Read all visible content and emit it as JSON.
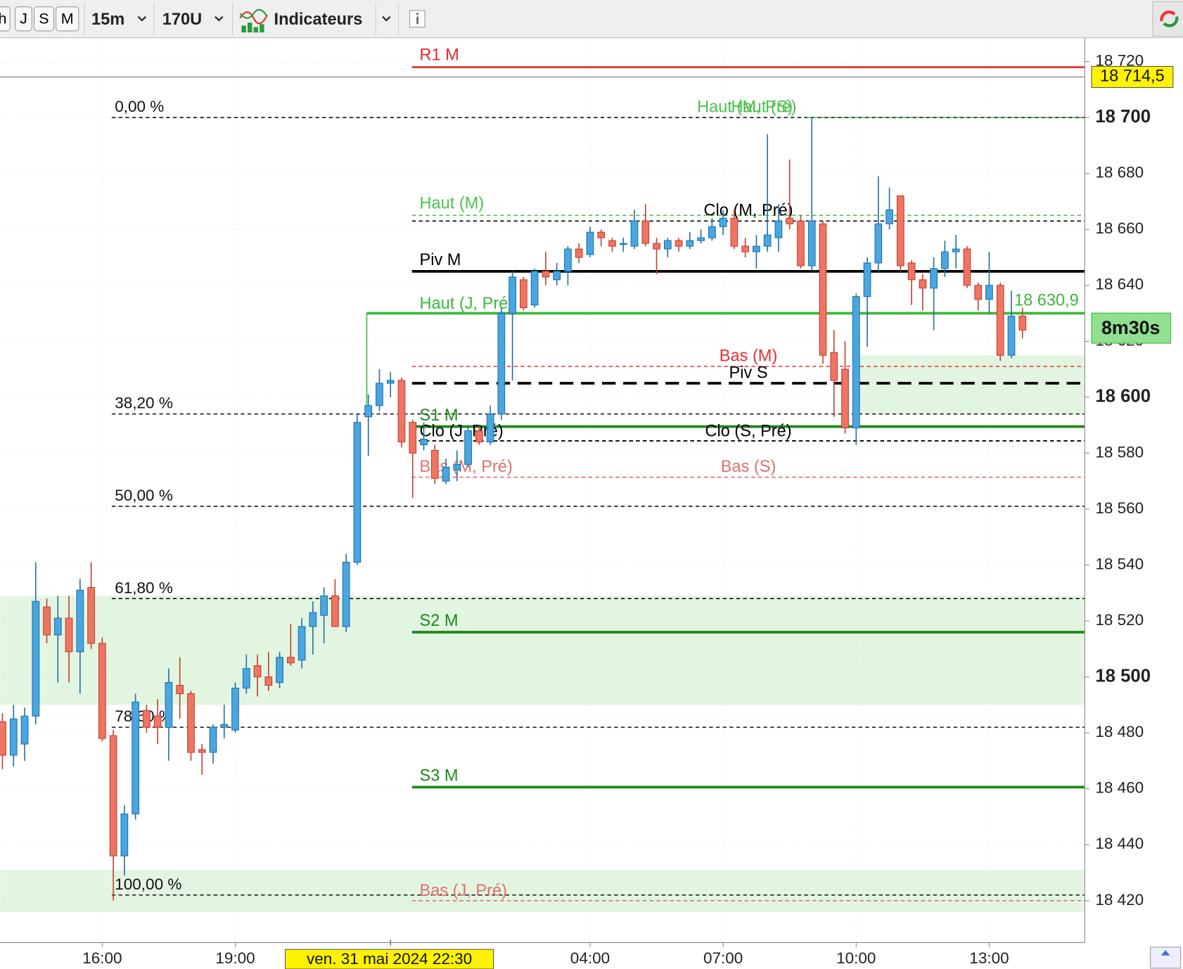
{
  "toolbar": {
    "period_buttons": [
      "h",
      "J",
      "S",
      "M"
    ],
    "timeframe": "15m",
    "units": "170U",
    "indicators": "Indicateurs"
  },
  "chart_data": {
    "type": "candlestick",
    "categories": [
      null,
      null,
      null,
      null,
      null,
      null,
      null,
      null,
      null,
      "16:00",
      null,
      null,
      null,
      null,
      null,
      null,
      null,
      null,
      null,
      null,
      null,
      "19:00",
      null,
      null,
      null,
      null,
      null,
      null,
      null,
      null,
      null,
      null,
      null,
      null,
      null,
      null,
      null,
      null,
      null,
      null,
      null,
      null,
      null,
      null,
      null,
      null,
      null,
      null,
      null,
      null,
      null,
      null,
      null,
      "04:00",
      null,
      null,
      null,
      null,
      null,
      null,
      null,
      null,
      null,
      null,
      null,
      "07:00",
      null,
      null,
      null,
      null,
      null,
      null,
      null,
      null,
      null,
      null,
      null,
      "10:00",
      null,
      null,
      null,
      null,
      null,
      null,
      null,
      null,
      null,
      null,
      null,
      "13:00",
      null,
      null,
      null
    ],
    "open": [
      18484,
      18472,
      18476,
      18486,
      18525,
      18515,
      18521,
      18509,
      18532,
      18512,
      18479,
      18436,
      18451,
      18488,
      18486,
      18482,
      18497,
      18494,
      18474,
      18473,
      18482,
      18481,
      18496,
      18504,
      18500,
      18498,
      18507,
      18506,
      18518,
      18522,
      18529,
      18518,
      18541,
      18593,
      18597,
      18605,
      18606,
      18591,
      18583,
      18581,
      18570,
      18574,
      18576,
      18588,
      18584,
      18594,
      18630,
      18642,
      18633,
      18645,
      18642,
      18645,
      18653,
      18651,
      18659,
      18656,
      18655,
      18654,
      18663,
      18655,
      18653,
      18656,
      18654,
      18656,
      18657,
      18661,
      18664,
      18654,
      18652,
      18654,
      18657,
      18664,
      18663,
      18647,
      18662,
      18616,
      18610,
      18589,
      18636,
      18648,
      18662,
      18672,
      18648,
      18642,
      18639,
      18646,
      18652,
      18653,
      18640,
      18635,
      18640,
      18615,
      18629
    ],
    "high": [
      18487,
      18490,
      18489,
      18541,
      18528,
      18529,
      18529,
      18535,
      18541,
      18514,
      18481,
      18454,
      18494,
      18490,
      18492,
      18503,
      18507,
      18495,
      18476,
      18483,
      18490,
      18498,
      18508,
      18508,
      18509,
      18509,
      18519,
      18521,
      18527,
      18532,
      18535,
      18544,
      18594,
      18601,
      18610,
      18609,
      18607,
      18592,
      18591,
      18583,
      18578,
      18581,
      18590,
      18590,
      18597,
      18632,
      18645,
      18643,
      18646,
      18652,
      18648,
      18654,
      18655,
      18661,
      18660,
      18657,
      18657,
      18667,
      18669,
      18657,
      18657,
      18657,
      18659,
      18660,
      18664,
      18667,
      18667,
      18657,
      18658,
      18694,
      18669,
      18685,
      18665,
      18700,
      18663,
      18624,
      18620,
      18637,
      18650,
      18679,
      18675,
      18672,
      18649,
      18644,
      18650,
      18656,
      18658,
      18654,
      18641,
      18652,
      18641,
      18638,
      18632
    ],
    "low": [
      18467,
      18468,
      18470,
      18483,
      18512,
      18498,
      18498,
      18494,
      18510,
      18477,
      18420,
      18429,
      18449,
      18480,
      18476,
      18470,
      18485,
      18470,
      18465,
      18469,
      18478,
      18480,
      18494,
      18493,
      18495,
      18496,
      18504,
      18503,
      18508,
      18512,
      18518,
      18516,
      18540,
      18579,
      18595,
      18600,
      18582,
      18564,
      18581,
      18569,
      18569,
      18570,
      18575,
      18583,
      18583,
      18592,
      18606,
      18631,
      18632,
      18640,
      18640,
      18640,
      18648,
      18650,
      18654,
      18652,
      18652,
      18653,
      18654,
      18644,
      18650,
      18652,
      18653,
      18655,
      18656,
      18658,
      18653,
      18650,
      18646,
      18652,
      18652,
      18660,
      18646,
      18645,
      18612,
      18593,
      18587,
      18583,
      18618,
      18645,
      18660,
      18645,
      18633,
      18631,
      18624,
      18643,
      18646,
      18639,
      18631,
      18630,
      18613,
      18614,
      18621
    ],
    "close": [
      18472,
      18485,
      18486,
      18527,
      18515,
      18521,
      18509,
      18531,
      18512,
      18478,
      18436,
      18451,
      18491,
      18482,
      18482,
      18498,
      18494,
      18473,
      18473,
      18482,
      18483,
      18496,
      18503,
      18500,
      18497,
      18507,
      18505,
      18518,
      18523,
      18529,
      18518,
      18541,
      18591,
      18597,
      18605,
      18606,
      18584,
      18580,
      18585,
      18571,
      18575,
      18576,
      18588,
      18584,
      18594,
      18630,
      18643,
      18632,
      18645,
      18643,
      18645,
      18653,
      18650,
      18659,
      18657,
      18654,
      18655,
      18663,
      18655,
      18653,
      18656,
      18654,
      18656,
      18657,
      18661,
      18664,
      18654,
      18652,
      18654,
      18658,
      18663,
      18662,
      18647,
      18663,
      18615,
      18606,
      18589,
      18636,
      18648,
      18662,
      18667,
      18647,
      18642,
      18639,
      18646,
      18652,
      18653,
      18640,
      18635,
      18640,
      18615,
      18629,
      18624
    ],
    "up_color": "#4aa6e0",
    "down_color": "#f07462",
    "ylim": [
      18405,
      18728
    ],
    "yticks": [
      {
        "value": 18720,
        "label": "18 720"
      },
      {
        "value": 18700,
        "label": "18 700"
      },
      {
        "value": 18680,
        "label": "18 680"
      },
      {
        "value": 18660,
        "label": "18 660"
      },
      {
        "value": 18640,
        "label": "18 640"
      },
      {
        "value": 18620,
        "label": "18 620"
      },
      {
        "value": 18600,
        "label": "18 600"
      },
      {
        "value": 18580,
        "label": "18 580"
      },
      {
        "value": 18560,
        "label": "18 560"
      },
      {
        "value": 18540,
        "label": "18 540"
      },
      {
        "value": 18520,
        "label": "18 520"
      },
      {
        "value": 18500,
        "label": "18 500"
      },
      {
        "value": 18480,
        "label": "18 480"
      },
      {
        "value": 18460,
        "label": "18 460"
      },
      {
        "value": 18440,
        "label": "18 440"
      },
      {
        "value": 18420,
        "label": "18 420"
      }
    ],
    "grid": true,
    "levels": [
      {
        "name": "R1 M",
        "value": 18718,
        "color": "#e8262a",
        "style": "solid"
      },
      {
        "name": "Haut (M, Pré)",
        "value": 18700,
        "color": "#4cc24c",
        "style": "dashed"
      },
      {
        "name": "Haut (S)",
        "value": 18700,
        "color": "#4cc24c",
        "style": "dashed"
      },
      {
        "name": "Haut (M)",
        "value": 18665,
        "color": "#4cc24c",
        "style": "dashed"
      },
      {
        "name": "Clo (M, Pré)",
        "value": 18663,
        "color": "#000000",
        "style": "dashed"
      },
      {
        "name": "Piv M",
        "value": 18645,
        "color": "#000000",
        "style": "thick"
      },
      {
        "name": "Haut (J, Pré)",
        "value": 18630,
        "color": "#3cb83c",
        "style": "thick"
      },
      {
        "name": "Bas (M)",
        "value": 18611,
        "color": "#e83030",
        "style": "dashed"
      },
      {
        "name": "Piv S",
        "value": 18605,
        "color": "#000000",
        "style": "thick-dashed"
      },
      {
        "name": "S1 M",
        "value": 18589.5,
        "color": "#1a8a1a",
        "style": "thick"
      },
      {
        "name": "Clo (J, Pré)",
        "value": 18584.4,
        "color": "#000000",
        "style": "dashed"
      },
      {
        "name": "Clo (S, Pré)",
        "value": 18584.4,
        "color": "#000000",
        "style": "dashed"
      },
      {
        "name": "Bas (M, Pré)",
        "value": 18571.4,
        "color": "#e07070",
        "style": "dashed"
      },
      {
        "name": "Bas (S)",
        "value": 18571.4,
        "color": "#e07070",
        "style": "dashed"
      },
      {
        "name": "S2 M",
        "value": 18516,
        "color": "#1a8a1a",
        "style": "thick"
      },
      {
        "name": "S3 M",
        "value": 18460.6,
        "color": "#1a8a1a",
        "style": "thick"
      },
      {
        "name": "Bas (J, Pré)",
        "value": 18420,
        "color": "#e07070",
        "style": "dashed"
      }
    ],
    "fibonacci": [
      {
        "value": 18700,
        "label": "0,00 %"
      },
      {
        "value": 18594,
        "label": "38,20 %"
      },
      {
        "value": 18561,
        "label": "50,00 %"
      },
      {
        "value": 18528,
        "label": "61,80 %"
      },
      {
        "value": 18482,
        "label": "78,60 %"
      },
      {
        "value": 18422,
        "label": "100,00 %"
      }
    ],
    "zones": [
      {
        "low": 18594,
        "high": 18615
      },
      {
        "low": 18490,
        "high": 18529
      },
      {
        "low": 18416,
        "high": 18431
      }
    ],
    "zone_color": "#e2f5e0",
    "crosshair": {
      "value": 18714.5,
      "label": "18 714,5",
      "x_label": "ven. 31 mai 2024 22:30"
    },
    "last_price": {
      "value": 18630.9,
      "label": "18 630,9"
    },
    "countdown": "8m30s"
  }
}
